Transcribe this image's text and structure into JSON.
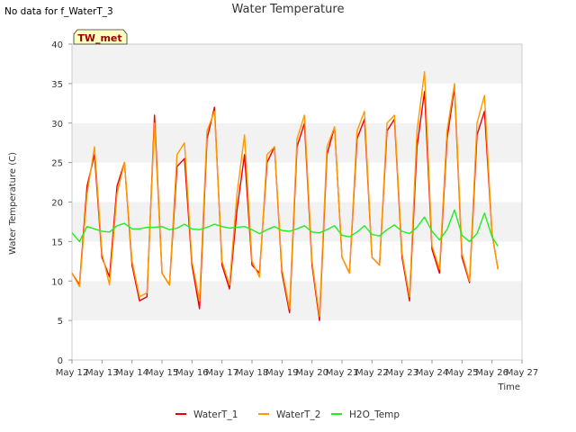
{
  "header": {
    "no_data_note": "No data for f_WaterT_3",
    "title": "Water Temperature",
    "badge": "TW_met"
  },
  "colors": {
    "WaterT_1": "#e8000b",
    "WaterT_2": "#ff9900",
    "H2O_Temp": "#22ee22",
    "band": "#f2f2f2",
    "badge_fill": "#ffffc0",
    "badge_text": "#990000"
  },
  "chart_data": {
    "type": "line",
    "title": "Water Temperature",
    "xlabel": "Time",
    "ylabel": "Water Temperature (C)",
    "xlim": [
      12,
      27
    ],
    "ylim": [
      0,
      40
    ],
    "x_ticks": [
      "May 12",
      "May 13",
      "May 14",
      "May 15",
      "May 16",
      "May 17",
      "May 18",
      "May 19",
      "May 20",
      "May 21",
      "May 22",
      "May 23",
      "May 24",
      "May 25",
      "May 26",
      "May 27"
    ],
    "y_ticks": [
      0,
      5,
      10,
      15,
      20,
      25,
      30,
      35,
      40
    ],
    "grid": "horizontal alternating bands",
    "legend_position": "bottom",
    "daily_extremes": {
      "days": [
        12,
        13,
        14,
        15,
        16,
        17,
        18,
        19,
        20,
        21,
        22,
        23,
        24,
        25,
        26
      ],
      "WaterT_1_max": [
        null,
        26.0,
        25.0,
        31.0,
        25.5,
        32.0,
        26.0,
        27.0,
        30.0,
        29.5,
        30.5,
        30.5,
        34.0,
        34.5,
        31.5
      ],
      "WaterT_1_min": [
        9.5,
        10.5,
        7.5,
        9.5,
        6.5,
        9.0,
        10.0,
        6.0,
        5.0,
        11.0,
        12.0,
        7.5,
        11.0,
        9.8,
        11.5
      ],
      "WaterT_2_max": [
        null,
        27.0,
        25.0,
        30.0,
        27.5,
        31.5,
        28.5,
        27.0,
        31.0,
        29.5,
        31.5,
        31.0,
        36.5,
        35.0,
        33.5
      ],
      "WaterT_2_min": [
        9.3,
        9.5,
        8.0,
        9.5,
        7.5,
        9.5,
        10.0,
        6.5,
        5.5,
        11.0,
        12.0,
        8.0,
        11.5,
        10.0,
        11.5
      ],
      "H2O_Temp_mean": [
        15.8,
        16.5,
        16.8,
        16.9,
        16.8,
        16.9,
        16.8,
        16.6,
        16.6,
        16.3,
        16.3,
        16.5,
        16.5,
        16.8,
        16.5
      ]
    },
    "series": [
      {
        "name": "WaterT_1",
        "x": [
          12.0,
          12.25,
          12.5,
          12.75,
          13.0,
          13.25,
          13.5,
          13.75,
          14.0,
          14.25,
          14.5,
          14.75,
          15.0,
          15.25,
          15.5,
          15.75,
          16.0,
          16.25,
          16.5,
          16.75,
          17.0,
          17.25,
          17.5,
          17.75,
          18.0,
          18.25,
          18.5,
          18.75,
          19.0,
          19.25,
          19.5,
          19.75,
          20.0,
          20.25,
          20.5,
          20.75,
          21.0,
          21.25,
          21.5,
          21.75,
          22.0,
          22.25,
          22.5,
          22.75,
          23.0,
          23.25,
          23.5,
          23.75,
          24.0,
          24.25,
          24.5,
          24.75,
          25.0,
          25.25,
          25.5,
          25.75,
          26.0,
          26.2
        ],
        "y": [
          11.0,
          9.5,
          22.0,
          26.0,
          13.0,
          10.5,
          22.0,
          25.0,
          12.0,
          7.5,
          8.0,
          31.0,
          11.0,
          9.5,
          24.5,
          25.5,
          12.0,
          6.5,
          28.0,
          32.0,
          12.0,
          9.0,
          19.0,
          26.0,
          12.0,
          11.0,
          25.0,
          27.0,
          11.0,
          6.0,
          27.0,
          30.0,
          12.0,
          5.0,
          26.0,
          29.5,
          13.0,
          11.0,
          28.0,
          30.5,
          13.0,
          12.0,
          29.0,
          30.5,
          13.0,
          7.5,
          27.0,
          34.0,
          14.0,
          11.0,
          28.0,
          34.5,
          13.0,
          9.8,
          28.5,
          31.5,
          16.0,
          11.5
        ]
      },
      {
        "name": "WaterT_2",
        "x": [
          12.0,
          12.25,
          12.5,
          12.75,
          13.0,
          13.25,
          13.5,
          13.75,
          14.0,
          14.25,
          14.5,
          14.75,
          15.0,
          15.25,
          15.5,
          15.75,
          16.0,
          16.25,
          16.5,
          16.75,
          17.0,
          17.25,
          17.5,
          17.75,
          18.0,
          18.25,
          18.5,
          18.75,
          19.0,
          19.25,
          19.5,
          19.75,
          20.0,
          20.25,
          20.5,
          20.75,
          21.0,
          21.25,
          21.5,
          21.75,
          22.0,
          22.25,
          22.5,
          22.75,
          23.0,
          23.25,
          23.5,
          23.75,
          24.0,
          24.25,
          24.5,
          24.75,
          25.0,
          25.25,
          25.5,
          25.75,
          26.0,
          26.2
        ],
        "y": [
          11.0,
          9.3,
          21.0,
          27.0,
          13.5,
          9.5,
          21.0,
          25.0,
          12.5,
          8.0,
          8.5,
          30.0,
          11.0,
          9.5,
          26.0,
          27.5,
          12.5,
          7.5,
          29.0,
          31.5,
          12.5,
          9.5,
          21.0,
          28.5,
          12.5,
          10.5,
          26.0,
          27.0,
          11.5,
          6.5,
          28.0,
          31.0,
          12.5,
          5.5,
          27.0,
          29.5,
          13.0,
          11.0,
          29.0,
          31.5,
          13.0,
          12.0,
          30.0,
          31.0,
          13.5,
          8.0,
          29.0,
          36.5,
          14.5,
          11.5,
          29.0,
          35.0,
          13.5,
          10.0,
          30.0,
          33.5,
          16.0,
          11.5
        ]
      },
      {
        "name": "H2O_Temp",
        "x": [
          12.0,
          12.25,
          12.5,
          12.75,
          13.0,
          13.25,
          13.5,
          13.75,
          14.0,
          14.25,
          14.5,
          14.75,
          15.0,
          15.25,
          15.5,
          15.75,
          16.0,
          16.25,
          16.5,
          16.75,
          17.0,
          17.25,
          17.5,
          17.75,
          18.0,
          18.25,
          18.5,
          18.75,
          19.0,
          19.25,
          19.5,
          19.75,
          20.0,
          20.25,
          20.5,
          20.75,
          21.0,
          21.25,
          21.5,
          21.75,
          22.0,
          22.25,
          22.5,
          22.75,
          23.0,
          23.25,
          23.5,
          23.75,
          24.0,
          24.25,
          24.5,
          24.75,
          25.0,
          25.25,
          25.5,
          25.75,
          26.0,
          26.2
        ],
        "y": [
          16.1,
          15.0,
          16.9,
          16.6,
          16.3,
          16.2,
          17.0,
          17.3,
          16.6,
          16.6,
          16.8,
          16.8,
          16.9,
          16.5,
          16.7,
          17.2,
          16.6,
          16.5,
          16.8,
          17.2,
          16.9,
          16.7,
          16.8,
          16.9,
          16.5,
          16.0,
          16.5,
          16.9,
          16.4,
          16.3,
          16.6,
          17.0,
          16.2,
          16.1,
          16.5,
          17.0,
          15.8,
          15.6,
          16.2,
          17.0,
          15.9,
          15.7,
          16.5,
          17.1,
          16.3,
          16.0,
          16.8,
          18.1,
          16.3,
          15.2,
          16.5,
          19.0,
          15.8,
          15.0,
          16.0,
          18.6,
          15.6,
          14.4
        ]
      }
    ]
  }
}
